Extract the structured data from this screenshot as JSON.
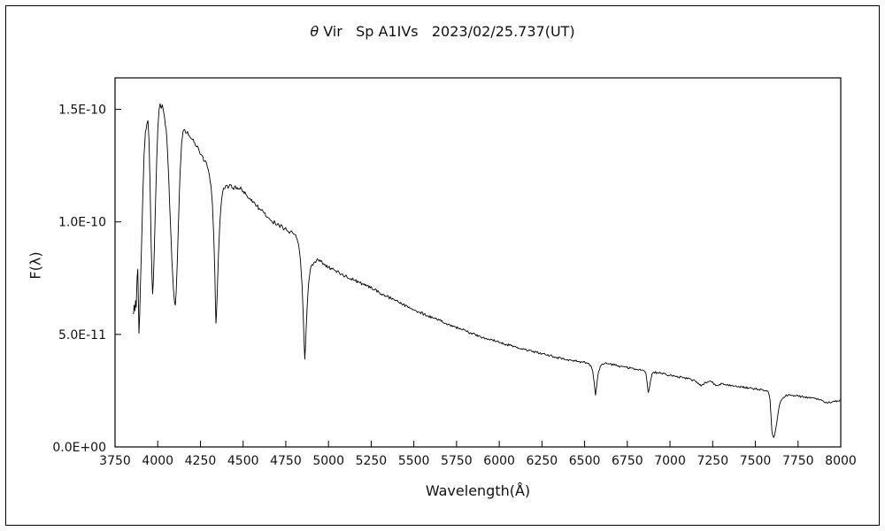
{
  "header": {
    "title_greek": "θ",
    "title_text": " Vir   Sp A1IVs   2023/02/25.737(UT)"
  },
  "chart_data": {
    "type": "line",
    "title": "θ Vir  Sp A1IVs  2023/02/25.737(UT)",
    "xlabel": "Wavelength(Å)",
    "ylabel": "F(λ)",
    "xlim": [
      3750,
      8000
    ],
    "ylim": [
      0,
      1.64e-10
    ],
    "x_ticks": [
      3750,
      4000,
      4250,
      4500,
      4750,
      5000,
      5250,
      5500,
      5750,
      6000,
      6250,
      6500,
      6750,
      7000,
      7250,
      7500,
      7750,
      8000
    ],
    "y_ticks": [
      0,
      5e-11,
      1e-10,
      1.5e-10
    ],
    "y_tick_labels": [
      "0.0E+00",
      "5.0E-11",
      "1.0E-10",
      "1.5E-10"
    ],
    "grid": false,
    "line_color": "#000000",
    "y_scale": 1e-11,
    "noise": {
      "amplitude": 0.06,
      "seed": 11
    },
    "absorption_lines": [
      "H8 3889",
      "Hε 3970",
      "Hδ 4102",
      "Hγ 4340",
      "Hβ 4861",
      "Hα 6563",
      "telluric B 6870",
      "telluric A 7600"
    ],
    "points": [
      [
        3858,
        5.9
      ],
      [
        3862,
        6.3
      ],
      [
        3866,
        6.05
      ],
      [
        3870,
        6.5
      ],
      [
        3874,
        6.2
      ],
      [
        3879,
        7.5
      ],
      [
        3883,
        7.9
      ],
      [
        3887,
        6.4
      ],
      [
        3890,
        5.05
      ],
      [
        3894,
        5.8
      ],
      [
        3899,
        7.2
      ],
      [
        3906,
        9.2
      ],
      [
        3913,
        11.2
      ],
      [
        3920,
        13.0
      ],
      [
        3928,
        14.0
      ],
      [
        3936,
        14.35
      ],
      [
        3943,
        14.5
      ],
      [
        3949,
        13.6
      ],
      [
        3955,
        11.6
      ],
      [
        3961,
        9.2
      ],
      [
        3966,
        7.6
      ],
      [
        3970,
        6.8
      ],
      [
        3974,
        7.3
      ],
      [
        3980,
        8.8
      ],
      [
        3987,
        10.8
      ],
      [
        3994,
        12.8
      ],
      [
        4001,
        14.2
      ],
      [
        4008,
        15.0
      ],
      [
        4014,
        15.25
      ],
      [
        4020,
        15.05
      ],
      [
        4027,
        15.2
      ],
      [
        4034,
        14.9
      ],
      [
        4041,
        14.6
      ],
      [
        4049,
        14.15
      ],
      [
        4057,
        13.2
      ],
      [
        4065,
        11.8
      ],
      [
        4074,
        10.0
      ],
      [
        4083,
        8.3
      ],
      [
        4092,
        7.0
      ],
      [
        4099,
        6.4
      ],
      [
        4103,
        6.3
      ],
      [
        4108,
        6.9
      ],
      [
        4115,
        8.3
      ],
      [
        4123,
        10.4
      ],
      [
        4131,
        12.2
      ],
      [
        4140,
        13.5
      ],
      [
        4149,
        14.05
      ],
      [
        4158,
        14.1
      ],
      [
        4170,
        13.95
      ],
      [
        4183,
        13.85
      ],
      [
        4197,
        13.7
      ],
      [
        4212,
        13.55
      ],
      [
        4227,
        13.35
      ],
      [
        4243,
        13.15
      ],
      [
        4259,
        12.95
      ],
      [
        4275,
        12.7
      ],
      [
        4290,
        12.45
      ],
      [
        4302,
        12.1
      ],
      [
        4312,
        11.6
      ],
      [
        4320,
        10.8
      ],
      [
        4328,
        9.4
      ],
      [
        4334,
        7.8
      ],
      [
        4338,
        6.4
      ],
      [
        4341,
        5.5
      ],
      [
        4344,
        5.9
      ],
      [
        4349,
        7.0
      ],
      [
        4356,
        8.6
      ],
      [
        4364,
        10.0
      ],
      [
        4374,
        11.0
      ],
      [
        4385,
        11.5
      ],
      [
        4398,
        11.6
      ],
      [
        4412,
        11.5
      ],
      [
        4426,
        11.65
      ],
      [
        4440,
        11.5
      ],
      [
        4455,
        11.6
      ],
      [
        4470,
        11.45
      ],
      [
        4486,
        11.55
      ],
      [
        4502,
        11.35
      ],
      [
        4520,
        11.2
      ],
      [
        4540,
        11.05
      ],
      [
        4560,
        10.9
      ],
      [
        4580,
        10.7
      ],
      [
        4600,
        10.55
      ],
      [
        4622,
        10.4
      ],
      [
        4644,
        10.2
      ],
      [
        4666,
        10.05
      ],
      [
        4688,
        9.95
      ],
      [
        4710,
        9.85
      ],
      [
        4732,
        9.75
      ],
      [
        4754,
        9.65
      ],
      [
        4776,
        9.55
      ],
      [
        4798,
        9.45
      ],
      [
        4812,
        9.3
      ],
      [
        4825,
        9.0
      ],
      [
        4836,
        8.3
      ],
      [
        4845,
        7.2
      ],
      [
        4852,
        5.9
      ],
      [
        4857,
        4.7
      ],
      [
        4861,
        3.9
      ],
      [
        4865,
        4.4
      ],
      [
        4870,
        5.4
      ],
      [
        4876,
        6.4
      ],
      [
        4884,
        7.3
      ],
      [
        4893,
        7.85
      ],
      [
        4903,
        8.1
      ],
      [
        4915,
        8.2
      ],
      [
        4930,
        8.3
      ],
      [
        4945,
        8.25
      ],
      [
        4963,
        8.2
      ],
      [
        4981,
        8.1
      ],
      [
        5000,
        8.0
      ],
      [
        5020,
        7.9
      ],
      [
        5042,
        7.82
      ],
      [
        5064,
        7.72
      ],
      [
        5086,
        7.62
      ],
      [
        5108,
        7.55
      ],
      [
        5130,
        7.47
      ],
      [
        5152,
        7.4
      ],
      [
        5175,
        7.32
      ],
      [
        5198,
        7.25
      ],
      [
        5222,
        7.15
      ],
      [
        5246,
        7.07
      ],
      [
        5270,
        6.98
      ],
      [
        5294,
        6.88
      ],
      [
        5318,
        6.78
      ],
      [
        5342,
        6.7
      ],
      [
        5366,
        6.6
      ],
      [
        5390,
        6.5
      ],
      [
        5414,
        6.42
      ],
      [
        5438,
        6.33
      ],
      [
        5462,
        6.25
      ],
      [
        5486,
        6.15
      ],
      [
        5510,
        6.07
      ],
      [
        5535,
        5.98
      ],
      [
        5560,
        5.9
      ],
      [
        5585,
        5.82
      ],
      [
        5610,
        5.74
      ],
      [
        5635,
        5.66
      ],
      [
        5660,
        5.58
      ],
      [
        5685,
        5.5
      ],
      [
        5710,
        5.43
      ],
      [
        5735,
        5.36
      ],
      [
        5760,
        5.28
      ],
      [
        5785,
        5.2
      ],
      [
        5810,
        5.13
      ],
      [
        5835,
        5.06
      ],
      [
        5860,
        5.0
      ],
      [
        5885,
        4.93
      ],
      [
        5910,
        4.87
      ],
      [
        5935,
        4.8
      ],
      [
        5960,
        4.75
      ],
      [
        5985,
        4.7
      ],
      [
        6010,
        4.63
      ],
      [
        6040,
        4.56
      ],
      [
        6070,
        4.5
      ],
      [
        6100,
        4.43
      ],
      [
        6130,
        4.37
      ],
      [
        6160,
        4.3
      ],
      [
        6190,
        4.25
      ],
      [
        6220,
        4.2
      ],
      [
        6250,
        4.14
      ],
      [
        6280,
        4.08
      ],
      [
        6310,
        4.03
      ],
      [
        6340,
        3.98
      ],
      [
        6370,
        3.93
      ],
      [
        6400,
        3.88
      ],
      [
        6430,
        3.83
      ],
      [
        6460,
        3.8
      ],
      [
        6490,
        3.76
      ],
      [
        6515,
        3.72
      ],
      [
        6535,
        3.62
      ],
      [
        6548,
        3.35
      ],
      [
        6556,
        2.85
      ],
      [
        6561,
        2.45
      ],
      [
        6564,
        2.3
      ],
      [
        6568,
        2.55
      ],
      [
        6574,
        2.95
      ],
      [
        6582,
        3.35
      ],
      [
        6592,
        3.58
      ],
      [
        6605,
        3.68
      ],
      [
        6620,
        3.72
      ],
      [
        6645,
        3.68
      ],
      [
        6670,
        3.64
      ],
      [
        6695,
        3.6
      ],
      [
        6720,
        3.57
      ],
      [
        6745,
        3.54
      ],
      [
        6770,
        3.5
      ],
      [
        6795,
        3.47
      ],
      [
        6820,
        3.44
      ],
      [
        6843,
        3.4
      ],
      [
        6858,
        3.3
      ],
      [
        6866,
        2.85
      ],
      [
        6872,
        2.42
      ],
      [
        6878,
        2.55
      ],
      [
        6886,
        2.95
      ],
      [
        6895,
        3.25
      ],
      [
        6905,
        3.32
      ],
      [
        6925,
        3.3
      ],
      [
        6950,
        3.27
      ],
      [
        6975,
        3.23
      ],
      [
        7000,
        3.19
      ],
      [
        7025,
        3.15
      ],
      [
        7050,
        3.11
      ],
      [
        7075,
        3.07
      ],
      [
        7100,
        3.03
      ],
      [
        7125,
        2.99
      ],
      [
        7150,
        2.93
      ],
      [
        7168,
        2.82
      ],
      [
        7182,
        2.7
      ],
      [
        7194,
        2.78
      ],
      [
        7208,
        2.87
      ],
      [
        7225,
        2.9
      ],
      [
        7245,
        2.87
      ],
      [
        7262,
        2.8
      ],
      [
        7278,
        2.72
      ],
      [
        7290,
        2.78
      ],
      [
        7305,
        2.82
      ],
      [
        7322,
        2.78
      ],
      [
        7340,
        2.76
      ],
      [
        7360,
        2.73
      ],
      [
        7380,
        2.71
      ],
      [
        7400,
        2.69
      ],
      [
        7420,
        2.67
      ],
      [
        7440,
        2.65
      ],
      [
        7460,
        2.62
      ],
      [
        7480,
        2.6
      ],
      [
        7500,
        2.58
      ],
      [
        7520,
        2.56
      ],
      [
        7540,
        2.54
      ],
      [
        7560,
        2.51
      ],
      [
        7575,
        2.45
      ],
      [
        7586,
        2.1
      ],
      [
        7592,
        1.3
      ],
      [
        7597,
        0.7
      ],
      [
        7602,
        0.5
      ],
      [
        7607,
        0.42
      ],
      [
        7612,
        0.5
      ],
      [
        7618,
        0.75
      ],
      [
        7625,
        1.05
      ],
      [
        7633,
        1.5
      ],
      [
        7641,
        1.85
      ],
      [
        7650,
        2.05
      ],
      [
        7662,
        2.18
      ],
      [
        7676,
        2.27
      ],
      [
        7692,
        2.3
      ],
      [
        7710,
        2.3
      ],
      [
        7730,
        2.28
      ],
      [
        7750,
        2.26
      ],
      [
        7770,
        2.24
      ],
      [
        7790,
        2.22
      ],
      [
        7810,
        2.2
      ],
      [
        7830,
        2.18
      ],
      [
        7850,
        2.15
      ],
      [
        7870,
        2.12
      ],
      [
        7890,
        2.06
      ],
      [
        7905,
        1.98
      ],
      [
        7920,
        1.95
      ],
      [
        7935,
        1.98
      ],
      [
        7950,
        2.0
      ],
      [
        7965,
        2.02
      ],
      [
        7980,
        2.05
      ],
      [
        7995,
        2.08
      ],
      [
        8000,
        2.1
      ]
    ]
  }
}
